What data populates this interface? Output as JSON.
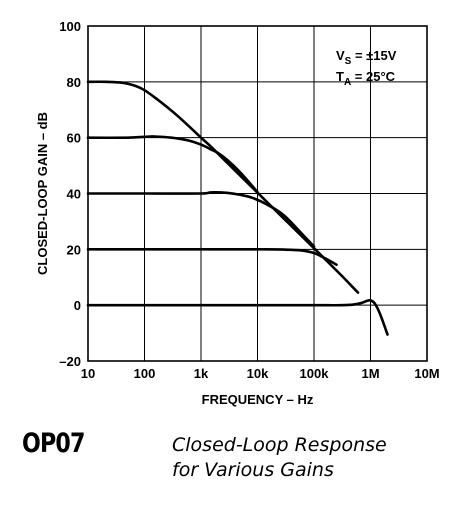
{
  "chart_data": {
    "type": "line",
    "xlabel": "FREQUENCY – Hz",
    "ylabel": "CLOSED-LOOP GAIN – dB",
    "x_scale": "log",
    "xlim": [
      10,
      10000000
    ],
    "ylim": [
      -20,
      100
    ],
    "x_ticks": [
      {
        "value": 10,
        "label": "10"
      },
      {
        "value": 100,
        "label": "100"
      },
      {
        "value": 1000,
        "label": "1k"
      },
      {
        "value": 10000,
        "label": "10k"
      },
      {
        "value": 100000,
        "label": "100k"
      },
      {
        "value": 1000000,
        "label": "1M"
      },
      {
        "value": 10000000,
        "label": "10M"
      }
    ],
    "y_ticks": [
      {
        "value": 100,
        "label": "100"
      },
      {
        "value": 80,
        "label": "80"
      },
      {
        "value": 60,
        "label": "60"
      },
      {
        "value": 40,
        "label": "40"
      },
      {
        "value": 20,
        "label": "20"
      },
      {
        "value": 0,
        "label": "0"
      },
      {
        "value": -20,
        "label": "–20"
      }
    ],
    "grid": true,
    "conditions": [
      {
        "main": "V",
        "sub": "S",
        "rest": " = ±15V"
      },
      {
        "main": "T",
        "sub": "A",
        "rest": " = 25°C"
      }
    ],
    "series": [
      {
        "x": [
          10,
          20,
          40,
          70,
          100,
          150,
          250,
          400,
          700,
          1000,
          1500,
          3000,
          10000,
          30000,
          100000,
          300000,
          600000
        ],
        "y": [
          80,
          80,
          79.7,
          78.5,
          77,
          74.5,
          71,
          67.5,
          63,
          60,
          56.8,
          50.7,
          40.3,
          30.8,
          20.4,
          10.8,
          4.5
        ]
      },
      {
        "x": [
          10,
          50,
          100,
          150,
          300,
          600,
          1000,
          1500,
          2000,
          3000,
          5000,
          10000
        ],
        "y": [
          60,
          60,
          60.3,
          60.4,
          60,
          59,
          57.5,
          55.8,
          54.5,
          51.8,
          47.5,
          40.5
        ]
      },
      {
        "x": [
          10,
          100,
          1000,
          1500,
          3000,
          5000,
          8000,
          15000,
          30000,
          70000,
          100000
        ],
        "y": [
          40,
          40,
          40,
          40.4,
          40.2,
          39.5,
          38.5,
          36,
          32,
          24.3,
          21
        ]
      },
      {
        "x": [
          10,
          1000,
          10000,
          30000,
          60000,
          100000,
          150000,
          250000
        ],
        "y": [
          20,
          20,
          20,
          19.9,
          19.6,
          18.7,
          17,
          14.5
        ]
      },
      {
        "x": [
          10,
          10000,
          100000,
          300000,
          500000,
          700000,
          850000,
          1000000,
          1200000,
          1500000,
          2000000
        ],
        "y": [
          0,
          0,
          0,
          0,
          0.2,
          0.8,
          1.5,
          1.7,
          0.5,
          -3.5,
          -10.5
        ]
      }
    ]
  },
  "footer": {
    "part_number": "OP07",
    "caption_line1": "Closed-Loop Response",
    "caption_line2": "for Various Gains"
  }
}
